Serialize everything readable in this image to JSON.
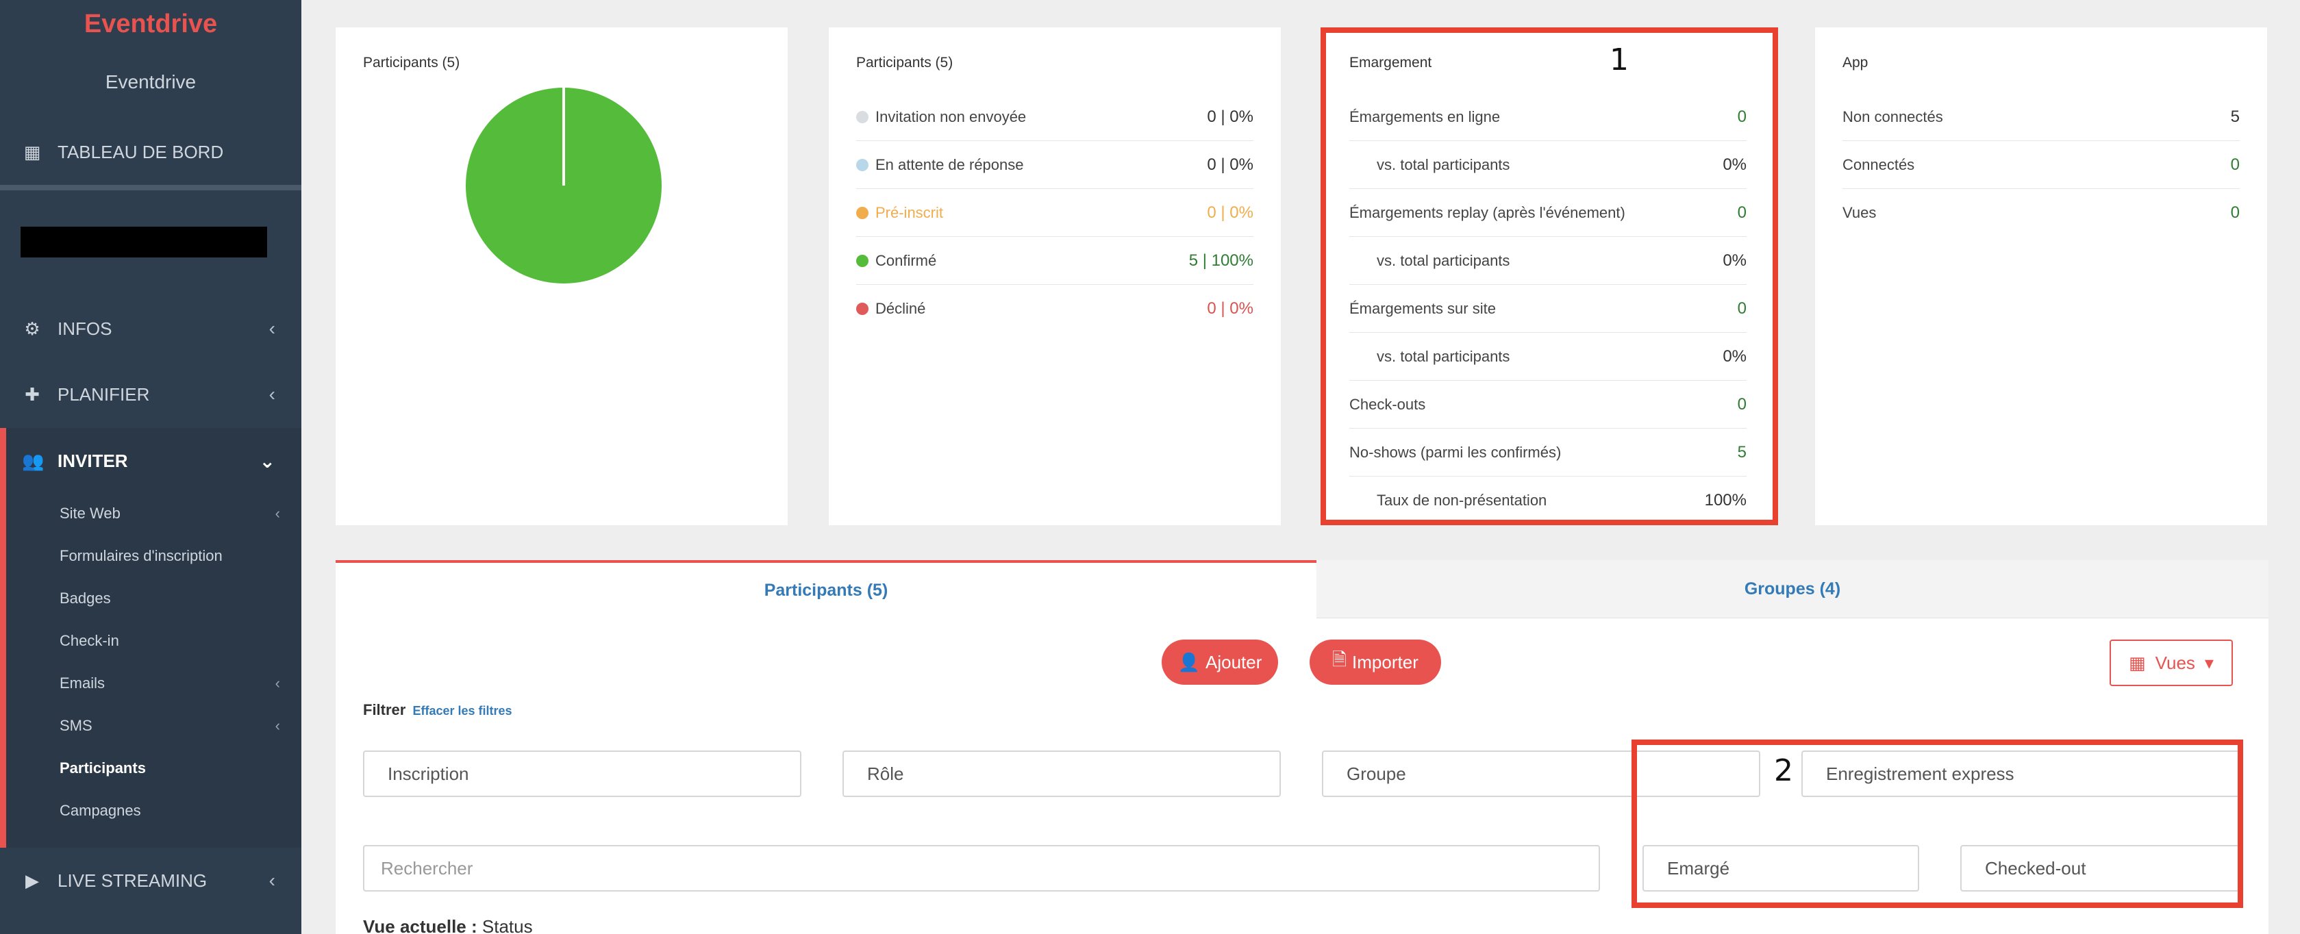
{
  "sidebar": {
    "brand": "Eventdrive",
    "subtitle": "Eventdrive",
    "dashboard": "TABLEAU DE BORD",
    "infos": "INFOS",
    "planifier": "PLANIFIER",
    "inviter": "INVITER",
    "sub_items": [
      {
        "label": "Site Web",
        "has_chevron": true
      },
      {
        "label": "Formulaires d'inscription",
        "has_chevron": false
      },
      {
        "label": "Badges",
        "has_chevron": false
      },
      {
        "label": "Check-in",
        "has_chevron": false
      },
      {
        "label": "Emails",
        "has_chevron": true
      },
      {
        "label": "SMS",
        "has_chevron": true
      },
      {
        "label": "Participants",
        "has_chevron": false,
        "active": true
      },
      {
        "label": "Campagnes",
        "has_chevron": false
      }
    ],
    "live_streaming": "LIVE STREAMING"
  },
  "card_pie": {
    "title": "Participants (5)",
    "chart": {
      "type": "pie",
      "slices": [
        {
          "label": "Confirmé",
          "value": 100,
          "color": "#55bb3a"
        }
      ]
    }
  },
  "card_status": {
    "title": "Participants (5)",
    "rows": [
      {
        "label": "Invitation non envoyée",
        "value": "0 | 0%",
        "dot": "#d9dde2"
      },
      {
        "label": "En attente de réponse",
        "value": "0 | 0%",
        "dot": "#b8d8ea"
      },
      {
        "label": "Pré-inscrit",
        "value": "0 | 0%",
        "dot": "#f0ad4e"
      },
      {
        "label": "Confirmé",
        "value": "5 | 100%",
        "dot": "#55bb3a"
      },
      {
        "label": "Décliné",
        "value": "0 | 0%",
        "dot": "#e05a5a"
      }
    ]
  },
  "card_emargement": {
    "title": "Emargement",
    "annotation": "1",
    "rows": [
      {
        "label": "Émargements en ligne",
        "value": "0"
      },
      {
        "label": "vs. total participants",
        "value": "0%"
      },
      {
        "label": "Émargements replay (après l'événement)",
        "value": "0"
      },
      {
        "label": "vs. total participants",
        "value": "0%"
      },
      {
        "label": "Émargements sur site",
        "value": "0"
      },
      {
        "label": "vs. total participants",
        "value": "0%"
      },
      {
        "label": "Check-outs",
        "value": "0"
      },
      {
        "label": "No-shows (parmi les confirmés)",
        "value": "5"
      },
      {
        "label": "Taux de non-présentation",
        "value": "100%"
      }
    ]
  },
  "card_app": {
    "title": "App",
    "rows": [
      {
        "label": "Non connectés",
        "value": "5"
      },
      {
        "label": "Connectés",
        "value": "0"
      },
      {
        "label": "Vues",
        "value": "0"
      }
    ]
  },
  "tabs": {
    "participants": "Participants (5)",
    "groupes": "Groupes (4)"
  },
  "actions": {
    "ajouter": "Ajouter",
    "importer": "Importer",
    "vues": "Vues"
  },
  "filter": {
    "label": "Filtrer",
    "clear": "Effacer les filtres",
    "inscription": "Inscription",
    "role": "Rôle",
    "groupe": "Groupe",
    "enregistrement": "Enregistrement express",
    "search_placeholder": "Rechercher",
    "emarge": "Emargé",
    "checked_out": "Checked-out",
    "annotation": "2"
  },
  "view": {
    "label": "Vue actuelle :",
    "value": "Status"
  },
  "colors": {
    "sidebar": "#2f3e4e",
    "accent": "#e8534f",
    "link": "#337ab7",
    "green": "#2f7d32",
    "highlight": "#e8412f"
  }
}
